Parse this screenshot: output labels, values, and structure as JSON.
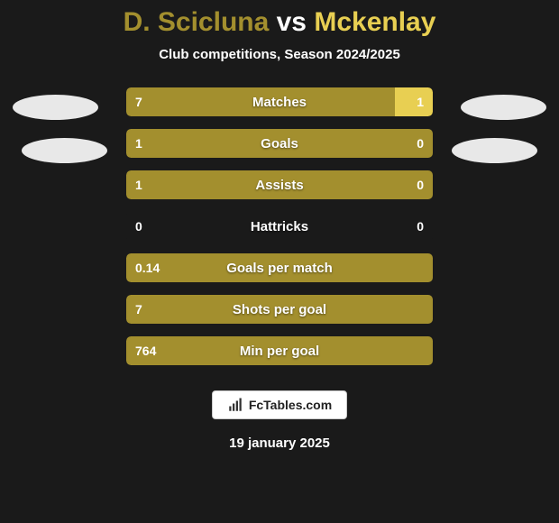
{
  "title": {
    "player1": "D. Scicluna",
    "vs": "vs",
    "player2": "Mckenlay"
  },
  "subtitle": "Club competitions, Season 2024/2025",
  "colors": {
    "player1": "#a38f2e",
    "player2": "#e8cf52",
    "background": "#1a1a1a",
    "text": "#ffffff",
    "ellipse": "#ffffff"
  },
  "bar_style": {
    "height": 32,
    "gap": 14,
    "border_radius": 5,
    "container_width": 340,
    "label_fontsize": 15,
    "value_fontsize": 14
  },
  "rows": [
    {
      "label": "Matches",
      "left_val": "7",
      "right_val": "1",
      "left_pct": 87.5,
      "right_pct": 12.5
    },
    {
      "label": "Goals",
      "left_val": "1",
      "right_val": "0",
      "left_pct": 100,
      "right_pct": 0
    },
    {
      "label": "Assists",
      "left_val": "1",
      "right_val": "0",
      "left_pct": 100,
      "right_pct": 0
    },
    {
      "label": "Hattricks",
      "left_val": "0",
      "right_val": "0",
      "left_pct": 0,
      "right_pct": 0
    },
    {
      "label": "Goals per match",
      "left_val": "0.14",
      "right_val": "",
      "left_pct": 100,
      "right_pct": 0
    },
    {
      "label": "Shots per goal",
      "left_val": "7",
      "right_val": "",
      "left_pct": 100,
      "right_pct": 0
    },
    {
      "label": "Min per goal",
      "left_val": "764",
      "right_val": "",
      "left_pct": 100,
      "right_pct": 0
    }
  ],
  "footer": {
    "logo_text": "FcTables.com",
    "date": "19 january 2025"
  }
}
